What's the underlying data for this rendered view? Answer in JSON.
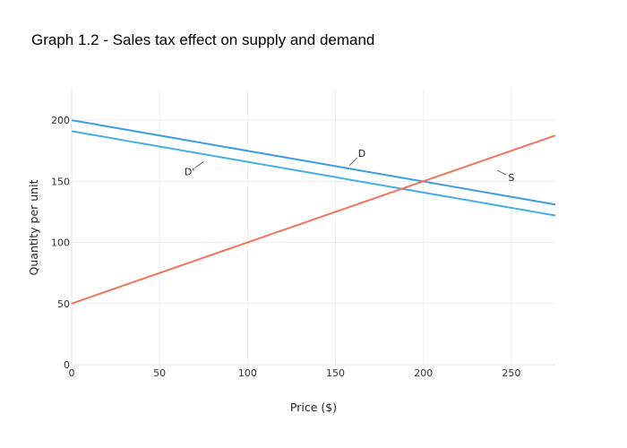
{
  "chart_data": {
    "type": "line",
    "title": "Graph 1.2 - Sales tax effect on supply and demand",
    "xlabel": "Price ($)",
    "ylabel": "Quantity per unit",
    "xlim": [
      0,
      275
    ],
    "ylim": [
      0,
      225
    ],
    "x_ticks": [
      0,
      50,
      100,
      150,
      200,
      250
    ],
    "y_ticks": [
      0,
      50,
      100,
      150,
      200
    ],
    "grid": true,
    "legend": "none",
    "series": [
      {
        "name": "D",
        "color": "#3b9ee0",
        "x": [
          0,
          275
        ],
        "y": [
          200,
          131
        ]
      },
      {
        "name": "D'",
        "color": "#44aee8",
        "x": [
          0,
          275
        ],
        "y": [
          191,
          122
        ]
      },
      {
        "name": "S",
        "color": "#f0735c",
        "x": [
          0,
          275
        ],
        "y": [
          50,
          187.5
        ]
      }
    ],
    "annotations": [
      {
        "text": "D",
        "x": 158,
        "y": 163,
        "label_x": 165,
        "label_y": 173
      },
      {
        "text": "D'",
        "x": 75,
        "y": 166,
        "label_x": 67,
        "label_y": 158
      },
      {
        "text": "S",
        "x": 242,
        "y": 159,
        "label_x": 250,
        "label_y": 153
      }
    ]
  }
}
